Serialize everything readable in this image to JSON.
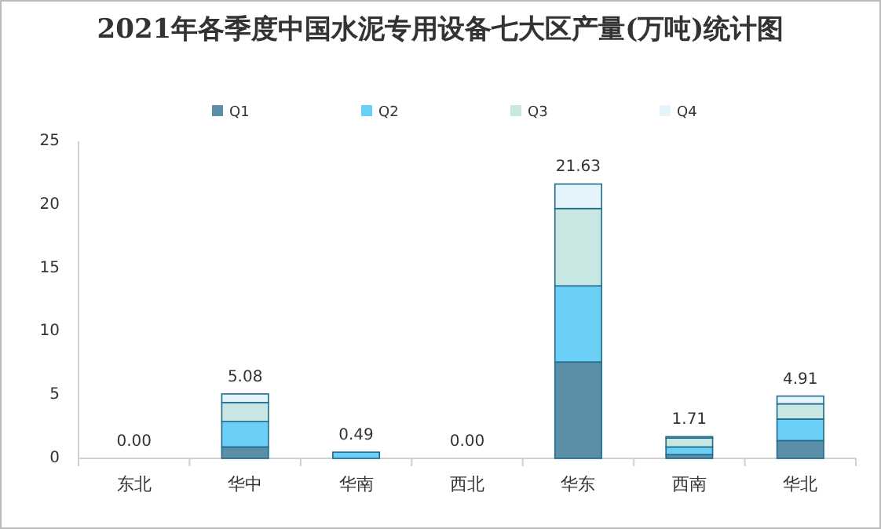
{
  "chart_data": {
    "type": "bar",
    "stacked": true,
    "title": "2021年各季度中国水泥专用设备七大区产量(万吨)统计图",
    "categories": [
      "东北",
      "华中",
      "华南",
      "西北",
      "华东",
      "西南",
      "华北"
    ],
    "series": [
      {
        "name": "Q1",
        "color": "#5b8fa8",
        "values": [
          0,
          0.9,
          0,
          0,
          7.6,
          0.3,
          1.4
        ]
      },
      {
        "name": "Q2",
        "color": "#6ccff6",
        "values": [
          0,
          2.0,
          0.49,
          0,
          6.0,
          0.6,
          1.7
        ]
      },
      {
        "name": "Q3",
        "color": "#c8e6e2",
        "values": [
          0,
          1.5,
          0,
          0,
          6.1,
          0.7,
          1.2
        ]
      },
      {
        "name": "Q4",
        "color": "#e4f4fa",
        "values": [
          0,
          0.68,
          0,
          0,
          1.93,
          0.11,
          0.61
        ]
      }
    ],
    "totals": [
      "0.00",
      "5.08",
      "0.49",
      "0.00",
      "21.63",
      "1.71",
      "4.91"
    ],
    "ylim": [
      0,
      25
    ],
    "yticks": [
      0,
      5,
      10,
      15,
      20,
      25
    ],
    "grid": false,
    "legend": "top"
  }
}
